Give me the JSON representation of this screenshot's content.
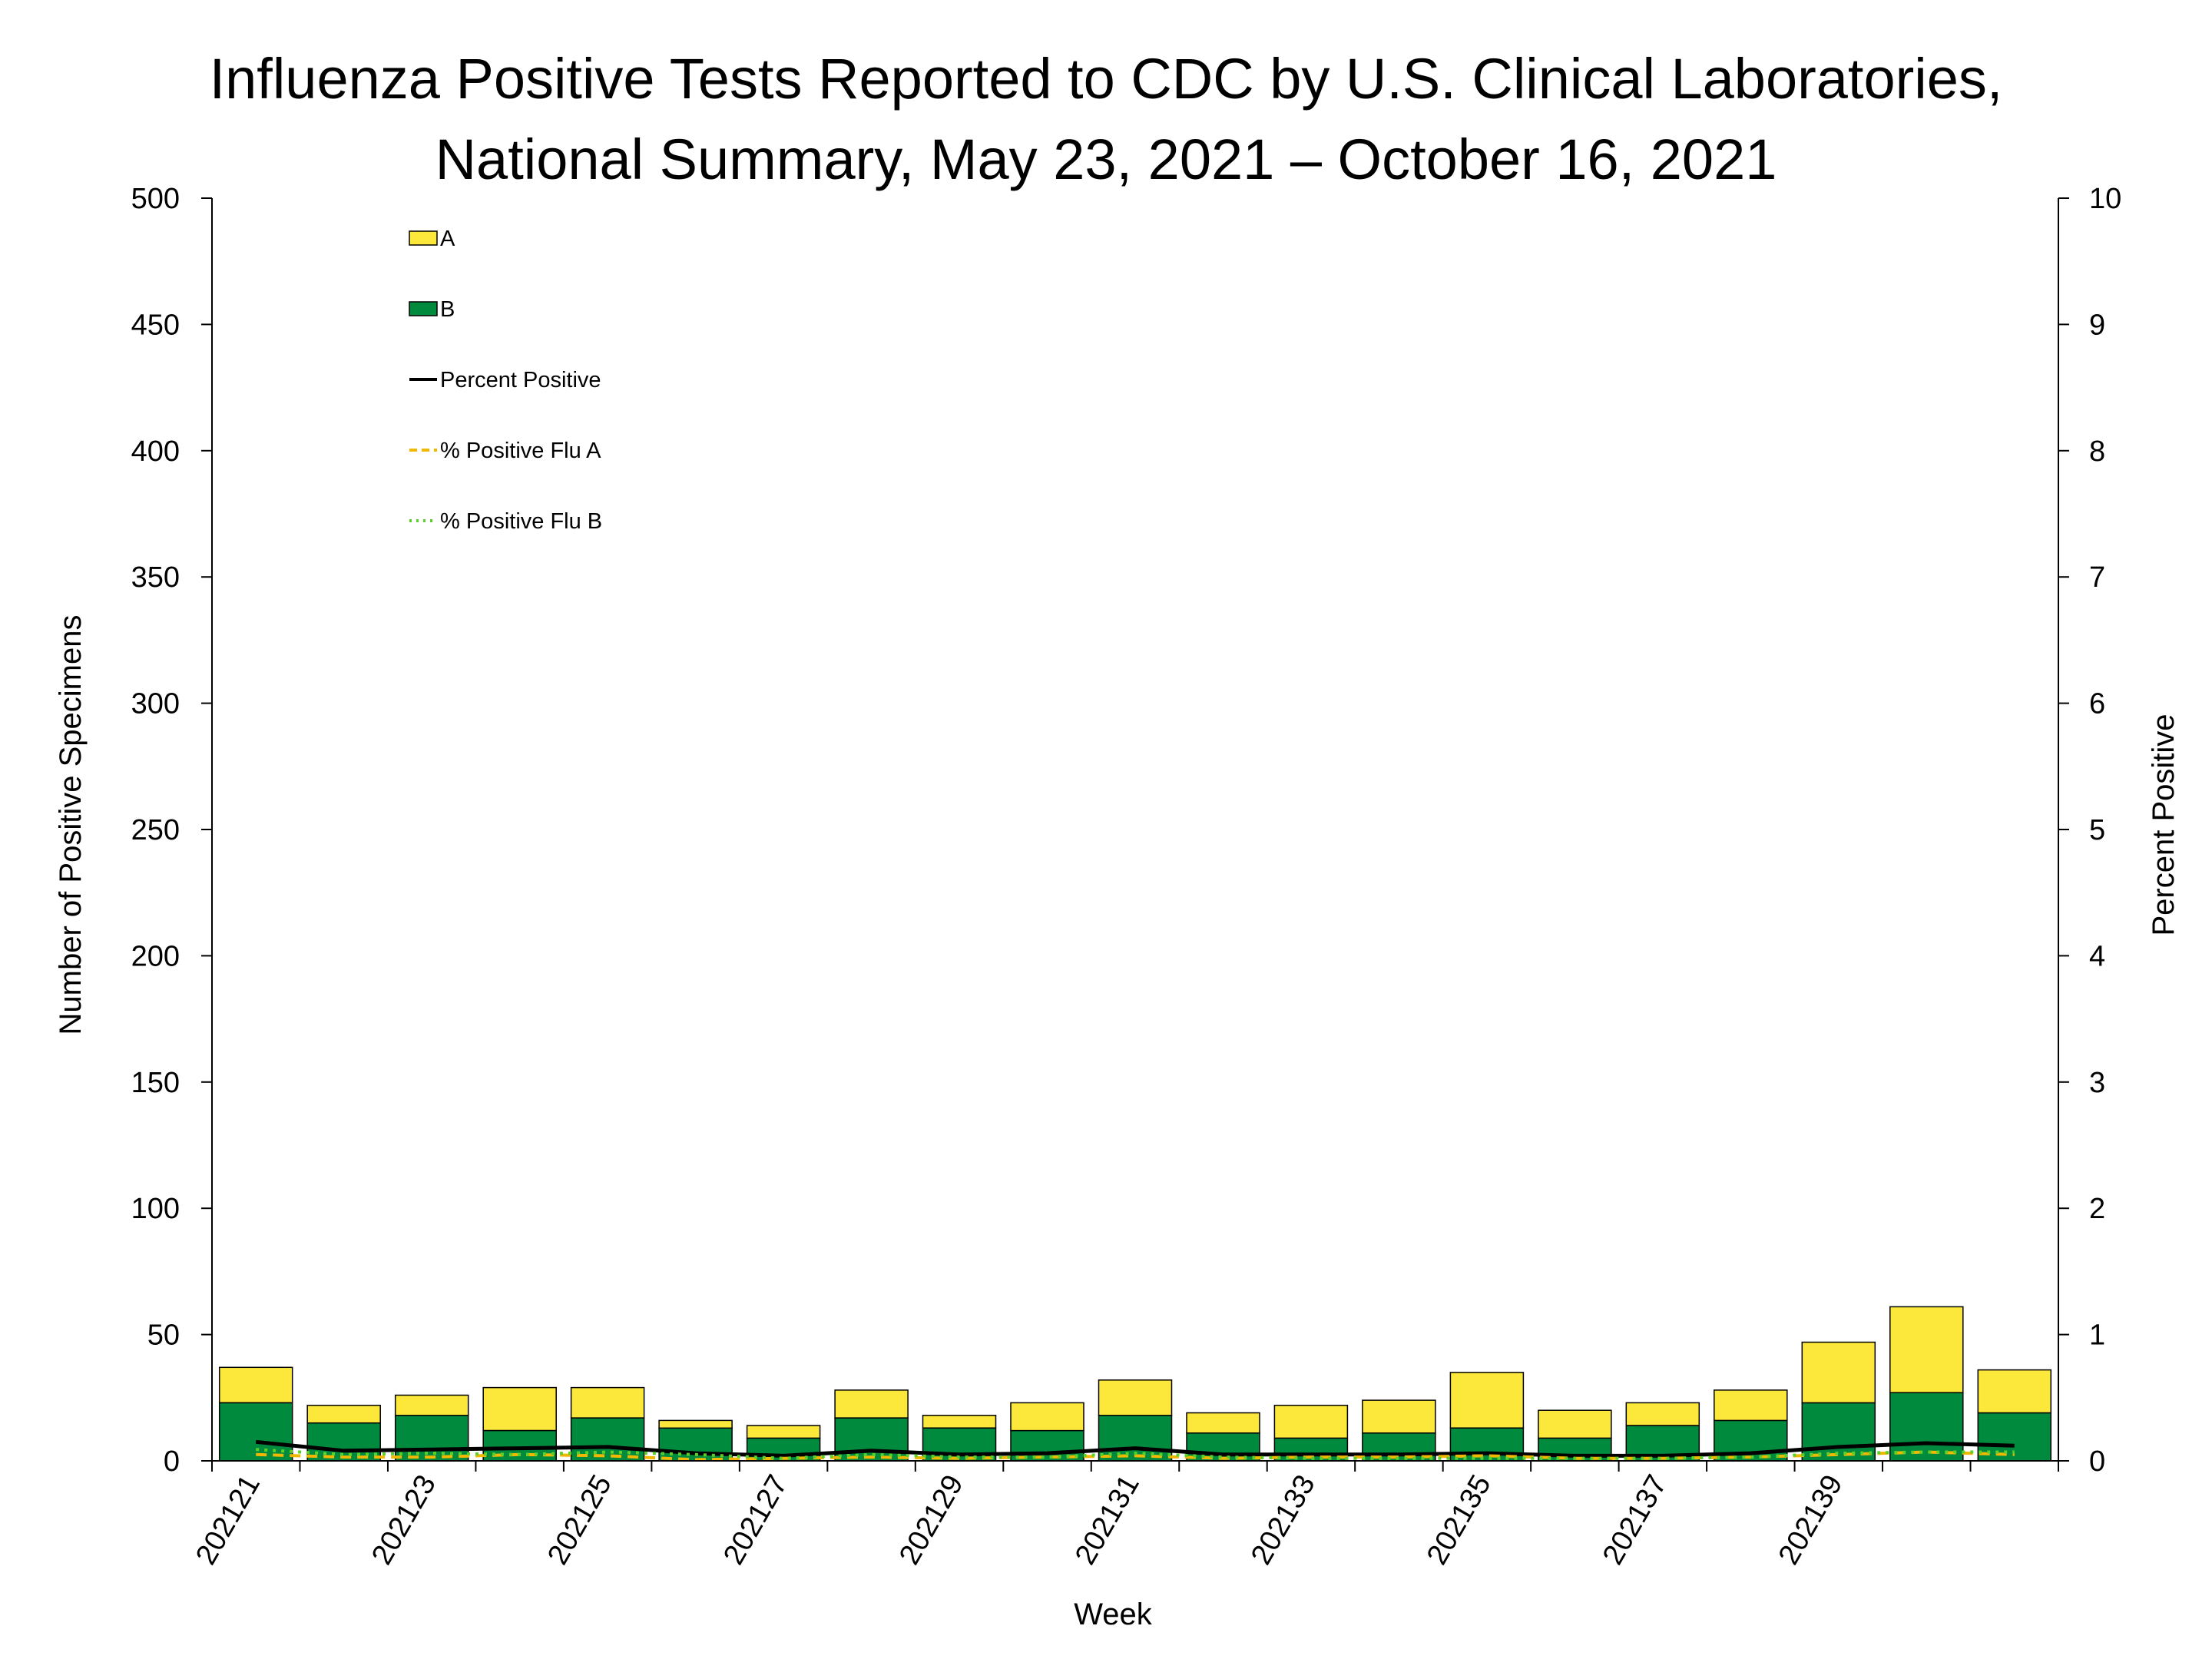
{
  "chart_data": {
    "type": "bar",
    "title_line1": "Influenza Positive Tests Reported to CDC by U.S. Clinical Laboratories,",
    "title_line2": "National Summary, May 23, 2021 – October 16, 2021",
    "xlabel": "Week",
    "ylabel_left": "Number of Positive Specimens",
    "ylabel_right": "Percent Positive",
    "ylim_left": [
      0,
      500
    ],
    "ylim_right": [
      0,
      10
    ],
    "yticks_left": [
      "0",
      "50",
      "100",
      "150",
      "200",
      "250",
      "300",
      "350",
      "400",
      "450",
      "500"
    ],
    "yticks_right": [
      "0",
      "1",
      "2",
      "3",
      "4",
      "5",
      "6",
      "7",
      "8",
      "9",
      "10"
    ],
    "categories": [
      "202121",
      "202122",
      "202123",
      "202124",
      "202125",
      "202126",
      "202127",
      "202128",
      "202129",
      "202130",
      "202131",
      "202132",
      "202133",
      "202134",
      "202135",
      "202136",
      "202137",
      "202138",
      "202139",
      "202140",
      "202141"
    ],
    "x_tick_labels": [
      "202121",
      "202123",
      "202125",
      "202127",
      "202129",
      "202131",
      "202133",
      "202135",
      "202137",
      "202139"
    ],
    "stacked": true,
    "grid": false,
    "legend_position": "top-left",
    "series": [
      {
        "name": "B",
        "kind": "bar",
        "axis": "left",
        "color": "#008a3e",
        "values": [
          23,
          15,
          18,
          12,
          17,
          13,
          9,
          17,
          13,
          12,
          18,
          11,
          9,
          11,
          13,
          9,
          14,
          16,
          23,
          27,
          19
        ]
      },
      {
        "name": "A",
        "kind": "bar",
        "axis": "left",
        "color": "#fce83a",
        "values": [
          14,
          7,
          8,
          17,
          12,
          3,
          5,
          11,
          5,
          11,
          14,
          8,
          13,
          13,
          22,
          11,
          9,
          12,
          24,
          34,
          17
        ]
      },
      {
        "name": "Percent Positive",
        "kind": "line",
        "axis": "right",
        "color": "#000000",
        "dash": "solid",
        "values": [
          0.15,
          0.08,
          0.09,
          0.1,
          0.11,
          0.06,
          0.04,
          0.08,
          0.05,
          0.06,
          0.1,
          0.05,
          0.05,
          0.05,
          0.06,
          0.04,
          0.04,
          0.06,
          0.11,
          0.14,
          0.12
        ]
      },
      {
        "name": "% Positive Flu A",
        "kind": "line",
        "axis": "right",
        "color": "#f2b800",
        "dash": "dashed",
        "values": [
          0.05,
          0.03,
          0.03,
          0.05,
          0.04,
          0.01,
          0.02,
          0.03,
          0.02,
          0.03,
          0.04,
          0.02,
          0.03,
          0.03,
          0.04,
          0.02,
          0.02,
          0.03,
          0.05,
          0.07,
          0.05
        ]
      },
      {
        "name": "% Positive Flu B",
        "kind": "line",
        "axis": "right",
        "color": "#5cd02a",
        "dash": "dotted",
        "values": [
          0.09,
          0.05,
          0.06,
          0.05,
          0.07,
          0.05,
          0.02,
          0.05,
          0.03,
          0.03,
          0.06,
          0.03,
          0.02,
          0.02,
          0.02,
          0.02,
          0.02,
          0.03,
          0.06,
          0.07,
          0.07
        ]
      }
    ],
    "legend": [
      {
        "label": "A",
        "type": "box",
        "color": "#fce83a"
      },
      {
        "label": "B",
        "type": "box",
        "color": "#008a3e"
      },
      {
        "label": "Percent Positive",
        "type": "line",
        "color": "#000000",
        "dash": "solid"
      },
      {
        "label": "% Positive Flu A",
        "type": "line",
        "color": "#f2b800",
        "dash": "dashed"
      },
      {
        "label": "% Positive Flu B",
        "type": "line",
        "color": "#5cd02a",
        "dash": "dotted"
      }
    ]
  }
}
